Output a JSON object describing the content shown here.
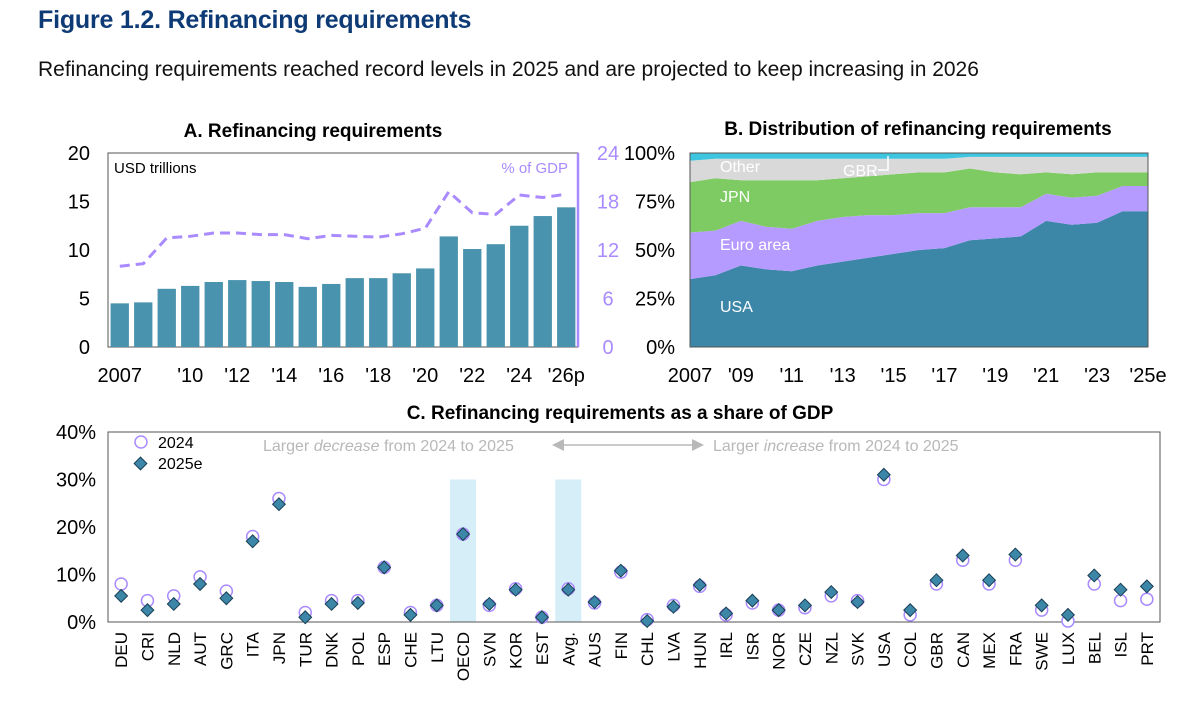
{
  "figure": {
    "title": "Figure 1.2. Refinancing requirements",
    "subtitle": "Refinancing requirements reached record levels in 2025 and are projected to keep increasing in 2026"
  },
  "colors": {
    "bar": "#4a93ae",
    "line": "#a98bff",
    "usa": "#3c86a8",
    "euro": "#b59bff",
    "jpn": "#7ecb63",
    "other": "#d9d9d9",
    "gbr": "#3ec5e0",
    "marker2025": "#3c86a8",
    "highlight": "#d5eef8",
    "annotation": "#b8b8b8"
  },
  "chart_data": [
    {
      "id": "A",
      "type": "bar",
      "title": "A. Refinancing requirements",
      "left_axis_label": "USD trillions",
      "right_axis_label": "% of GDP",
      "ylim_left": [
        0,
        20
      ],
      "left_ticks": [
        "0",
        "5",
        "10",
        "15",
        "20"
      ],
      "ylim_right": [
        0,
        24
      ],
      "right_ticks": [
        "0",
        "6",
        "12",
        "18",
        "24"
      ],
      "x_tick_labels": [
        {
          "index": 0,
          "label": "2007"
        },
        {
          "index": 3,
          "label": "'10"
        },
        {
          "index": 5,
          "label": "'12"
        },
        {
          "index": 7,
          "label": "'14"
        },
        {
          "index": 9,
          "label": "'16"
        },
        {
          "index": 11,
          "label": "'18"
        },
        {
          "index": 13,
          "label": "'20"
        },
        {
          "index": 15,
          "label": "'22"
        },
        {
          "index": 17,
          "label": "'24"
        },
        {
          "index": 19,
          "label": "'26p"
        }
      ],
      "series": [
        {
          "kind": "bar",
          "axis": "left",
          "values": [
            4.5,
            4.6,
            6.0,
            6.3,
            6.7,
            6.9,
            6.8,
            6.7,
            6.2,
            6.5,
            7.1,
            7.1,
            7.6,
            8.1,
            11.4,
            10.1,
            10.6,
            12.5,
            13.5,
            14.4
          ]
        },
        {
          "kind": "line",
          "axis": "right",
          "style": "dashed",
          "values": [
            10.0,
            10.3,
            13.5,
            13.7,
            14.1,
            14.1,
            13.9,
            13.9,
            13.4,
            13.8,
            13.7,
            13.6,
            14.0,
            14.7,
            19.2,
            16.6,
            16.4,
            18.8,
            18.5,
            18.9
          ]
        }
      ]
    },
    {
      "id": "B",
      "type": "area",
      "title": "B. Distribution of refinancing requirements",
      "ylim": [
        0,
        100
      ],
      "y_ticks": [
        "0%",
        "25%",
        "50%",
        "75%",
        "100%"
      ],
      "x_tick_labels": [
        {
          "index": 0,
          "label": "2007"
        },
        {
          "index": 2,
          "label": "'09"
        },
        {
          "index": 4,
          "label": "'11"
        },
        {
          "index": 6,
          "label": "'13"
        },
        {
          "index": 8,
          "label": "'15"
        },
        {
          "index": 10,
          "label": "'17"
        },
        {
          "index": 12,
          "label": "'19"
        },
        {
          "index": 14,
          "label": "'21"
        },
        {
          "index": 16,
          "label": "'23"
        },
        {
          "index": 18,
          "label": "'25e"
        }
      ],
      "series": [
        {
          "name": "USA",
          "values": [
            35,
            37,
            42,
            40,
            39,
            42,
            44,
            46,
            48,
            50,
            51,
            55,
            56,
            57,
            65,
            63,
            64,
            70,
            70
          ]
        },
        {
          "name": "Euro area",
          "values": [
            24,
            23,
            23,
            22,
            22,
            23,
            23,
            22,
            20,
            19,
            18,
            17,
            16,
            15,
            14,
            14,
            14,
            13,
            13
          ]
        },
        {
          "name": "JPN",
          "values": [
            26,
            27,
            21,
            24,
            25,
            21,
            20,
            20,
            21,
            21,
            21,
            20,
            18,
            17,
            11,
            12,
            12,
            7,
            7
          ]
        },
        {
          "name": "Other",
          "values": [
            11,
            10,
            11,
            11,
            11,
            11,
            10,
            9,
            8,
            7,
            7,
            6,
            8,
            9,
            8,
            9,
            8,
            8,
            8
          ]
        },
        {
          "name": "GBR",
          "values": [
            4,
            3,
            3,
            3,
            3,
            3,
            3,
            3,
            3,
            3,
            3,
            2,
            2,
            2,
            2,
            2,
            2,
            2,
            2
          ]
        }
      ]
    },
    {
      "id": "C",
      "type": "scatter",
      "title": "C. Refinancing requirements as a share of GDP",
      "ylim": [
        0,
        40
      ],
      "y_ticks": [
        "0%",
        "10%",
        "20%",
        "30%",
        "40%"
      ],
      "legend": [
        "2024",
        "2025e"
      ],
      "annotations": {
        "left": [
          "Larger ",
          "decrease",
          " from 2024 to 2025"
        ],
        "right": [
          "Larger ",
          "increase",
          " from 2024 to 2025"
        ]
      },
      "highlighted": [
        "OECD",
        "Avg."
      ],
      "categories": [
        "DEU",
        "CRI",
        "NLD",
        "AUT",
        "GRC",
        "ITA",
        "JPN",
        "TUR",
        "DNK",
        "POL",
        "ESP",
        "CHE",
        "LTU",
        "OECD",
        "SVN",
        "KOR",
        "EST",
        "Avg.",
        "AUS",
        "FIN",
        "CHL",
        "LVA",
        "HUN",
        "IRL",
        "ISR",
        "NOR",
        "CZE",
        "NZL",
        "SVK",
        "USA",
        "COL",
        "GBR",
        "CAN",
        "MEX",
        "FRA",
        "SWE",
        "LUX",
        "BEL",
        "ISL",
        "PRT"
      ],
      "series": [
        {
          "name": "2024",
          "values": [
            8.0,
            4.5,
            5.5,
            9.5,
            6.5,
            18.0,
            26.0,
            2.0,
            4.5,
            4.5,
            11.5,
            2.0,
            3.5,
            18.5,
            3.5,
            7.0,
            1.0,
            7.0,
            4.0,
            10.5,
            0.5,
            3.5,
            7.5,
            1.5,
            4.0,
            2.5,
            3.0,
            5.5,
            4.5,
            30.0,
            1.5,
            8.0,
            13.0,
            8.0,
            13.0,
            2.5,
            0.2,
            8.0,
            4.5,
            4.8
          ]
        },
        {
          "name": "2025e",
          "values": [
            5.5,
            2.5,
            3.8,
            8.0,
            5.0,
            17.0,
            24.8,
            1.0,
            3.8,
            4.0,
            11.5,
            1.5,
            3.5,
            18.5,
            3.8,
            6.8,
            1.0,
            6.8,
            4.2,
            10.8,
            0.2,
            3.2,
            7.8,
            1.8,
            4.5,
            2.5,
            3.5,
            6.3,
            4.2,
            31.0,
            2.5,
            8.8,
            14.0,
            8.8,
            14.2,
            3.5,
            1.5,
            9.8,
            6.8,
            7.5
          ]
        }
      ]
    }
  ]
}
